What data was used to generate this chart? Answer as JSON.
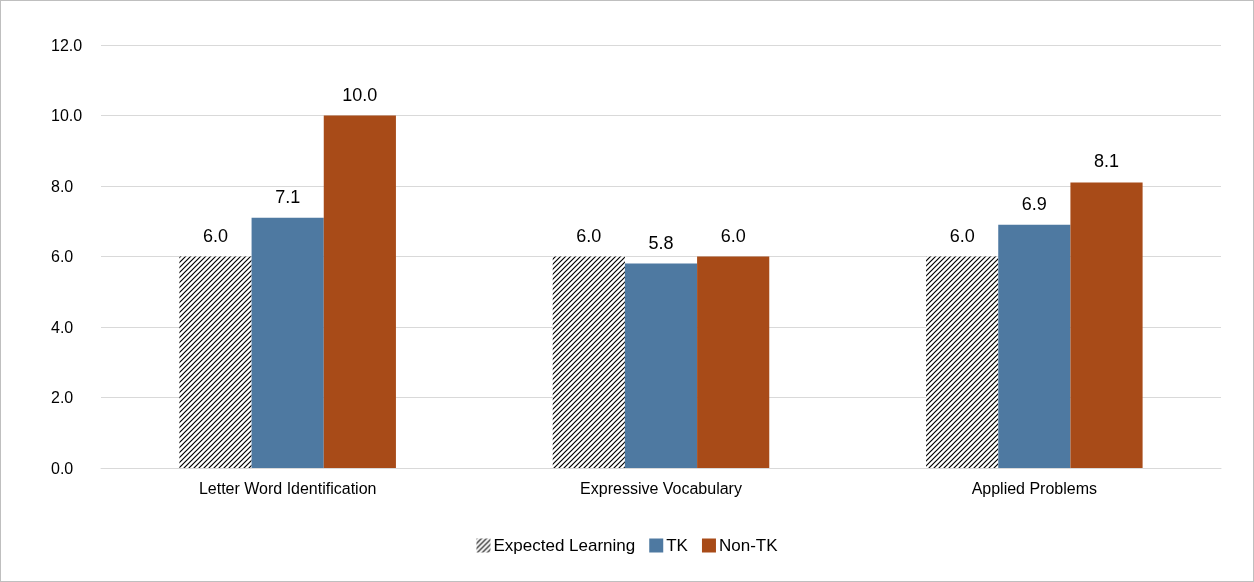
{
  "chart_data": {
    "type": "bar",
    "categories": [
      "Letter Word Identification",
      "Expressive Vocabulary",
      "Applied Problems"
    ],
    "series": [
      {
        "name": "Expected Learning",
        "color": "#000000",
        "values": [
          6.0,
          6.0,
          6.0
        ],
        "value_labels": [
          "6.0",
          "6.0",
          "6.0"
        ]
      },
      {
        "name": "TK",
        "color": "#4e79a1",
        "values": [
          7.1,
          5.8,
          6.9
        ],
        "value_labels": [
          "7.1",
          "5.8",
          "6.9"
        ]
      },
      {
        "name": "Non-TK",
        "color": "#a84b18",
        "values": [
          10.0,
          6.0,
          8.1
        ],
        "value_labels": [
          "10.0",
          "6.0",
          "8.1"
        ]
      }
    ],
    "ylim": [
      0,
      12
    ],
    "yticks": [
      {
        "value": 0,
        "label": "0.0"
      },
      {
        "value": 2,
        "label": "2.0"
      },
      {
        "value": 4,
        "label": "4.0"
      },
      {
        "value": 6,
        "label": "6.0"
      },
      {
        "value": 8,
        "label": "8.0"
      },
      {
        "value": 10,
        "label": "10.0"
      },
      {
        "value": 12,
        "label": "12.0"
      }
    ],
    "grid": "y",
    "legend": "bottom"
  }
}
